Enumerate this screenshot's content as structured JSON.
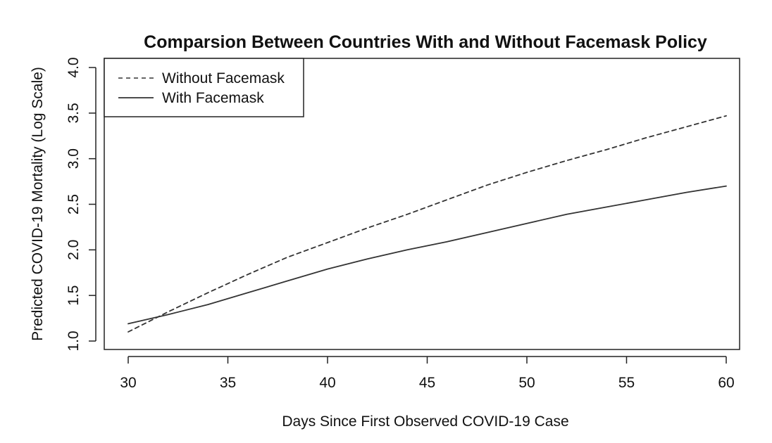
{
  "chart_data": {
    "type": "line",
    "title": "Comparsion Between Countries With and Without Facemask Policy",
    "xlabel": "Days Since First Observed COVID-19 Case",
    "ylabel": "Predicted COVID-19 Mortality (Log Scale)",
    "xlim": [
      30,
      60
    ],
    "ylim": [
      1.0,
      4.0
    ],
    "x_ticks": [
      "30",
      "35",
      "40",
      "45",
      "50",
      "55",
      "60"
    ],
    "y_ticks": [
      "1.0",
      "1.5",
      "2.0",
      "2.5",
      "3.0",
      "3.5",
      "4.0"
    ],
    "grid": false,
    "legend_position": "top-left",
    "series": [
      {
        "name": "Without Facemask",
        "line_style": "dashed",
        "color": "#333333",
        "x": [
          30,
          32,
          34,
          36,
          38,
          40,
          42,
          44,
          46,
          48,
          50,
          52,
          54,
          56,
          58,
          60
        ],
        "y": [
          1.1,
          1.32,
          1.53,
          1.73,
          1.92,
          2.08,
          2.24,
          2.39,
          2.55,
          2.71,
          2.85,
          2.98,
          3.1,
          3.23,
          3.35,
          3.47
        ]
      },
      {
        "name": "With Facemask",
        "line_style": "solid",
        "color": "#333333",
        "x": [
          30,
          32,
          34,
          36,
          38,
          40,
          42,
          44,
          46,
          48,
          50,
          52,
          54,
          56,
          58,
          60
        ],
        "y": [
          1.19,
          1.29,
          1.4,
          1.53,
          1.66,
          1.79,
          1.9,
          2.0,
          2.09,
          2.19,
          2.29,
          2.39,
          2.47,
          2.55,
          2.63,
          2.7
        ]
      }
    ]
  }
}
